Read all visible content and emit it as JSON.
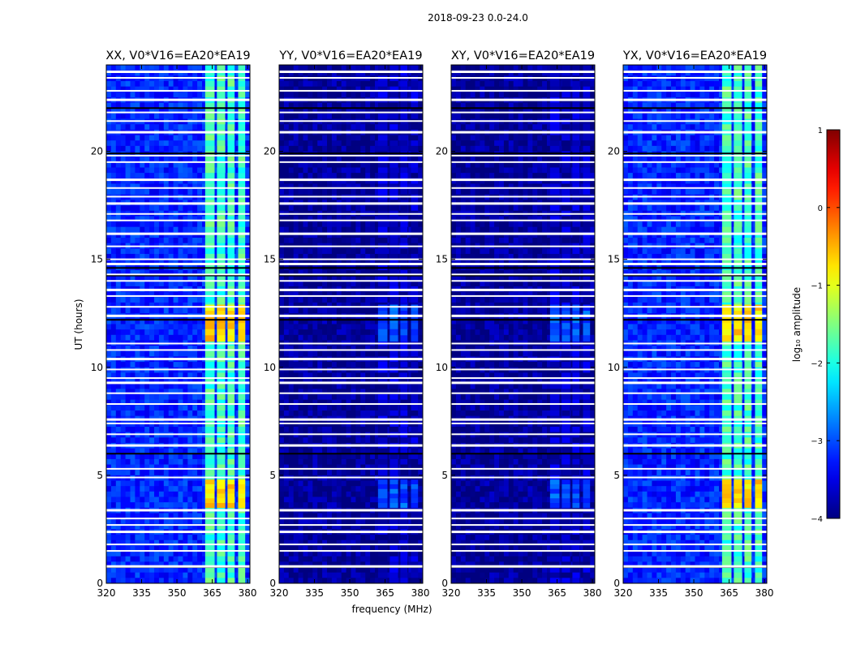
{
  "suptitle": "2018-09-23 0.0-24.0",
  "colors": {
    "background": "#ffffff",
    "flag_line": "#ffffff",
    "dark_line": "#000000",
    "axes": "#000000"
  },
  "chart_data": {
    "type": "heatmap",
    "ylabel": "UT (hours)",
    "xlabel": "frequency (MHz)",
    "xlim": [
      320,
      381
    ],
    "ylim": [
      0,
      24
    ],
    "xticks": [
      320,
      335,
      350,
      365,
      380
    ],
    "yticks": [
      0,
      5,
      10,
      15,
      20
    ],
    "xtick_labels": [
      "320",
      "335",
      "350",
      "365",
      "380"
    ],
    "ytick_labels": [
      "0",
      "5",
      "10",
      "15",
      "20"
    ],
    "panels": [
      {
        "title": "XX, V0*V16=EA20*EA19",
        "base_level": -3.2,
        "rfi_level": -1.8,
        "bright_level": -0.7
      },
      {
        "title": "YY, V0*V16=EA20*EA19",
        "base_level": -3.9,
        "rfi_level": -3.7,
        "bright_level": -3.0
      },
      {
        "title": "XY, V0*V16=EA20*EA19",
        "base_level": -3.9,
        "rfi_level": -3.7,
        "bright_level": -3.0
      },
      {
        "title": "YX, V0*V16=EA20*EA19",
        "base_level": -3.2,
        "rfi_level": -1.8,
        "bright_level": -0.7
      }
    ],
    "rfi_band_mhz": [
      361,
      379
    ],
    "rfi_subbands_mhz": [
      [
        362,
        366
      ],
      [
        367,
        370.5
      ],
      [
        371.5,
        374.5
      ],
      [
        376,
        379
      ]
    ],
    "bright_time_ranges_hours": [
      [
        3.5,
        4.8
      ],
      [
        11.2,
        12.9
      ]
    ],
    "flagged_times_hours": [
      0.8,
      1.5,
      1.8,
      2.4,
      2.7,
      3.0,
      3.4,
      4.9,
      5.3,
      6.4,
      6.9,
      7.4,
      7.6,
      8.3,
      8.8,
      9.3,
      9.5,
      9.9,
      10.4,
      10.8,
      11.1,
      12.4,
      12.8,
      13.3,
      13.6,
      14.0,
      14.3,
      14.8,
      15.0,
      15.6,
      16.2,
      16.8,
      17.1,
      17.6,
      17.9,
      18.3,
      18.7,
      19.5,
      19.8,
      20.9,
      21.4,
      21.8,
      22.4,
      22.8,
      23.4,
      23.7
    ],
    "dark_times_hours": [
      0.75,
      6.0,
      14.25,
      14.6,
      19.9,
      22.0,
      12.2
    ],
    "colorbar": {
      "label": "log₁₀ amplitude",
      "range": [
        -4,
        1
      ],
      "ticks": [
        1,
        0,
        -1,
        -2,
        -3,
        -4
      ],
      "tick_labels": [
        "1",
        "0",
        "−1",
        "−2",
        "−3",
        "−4"
      ],
      "colormap": "jet"
    }
  }
}
